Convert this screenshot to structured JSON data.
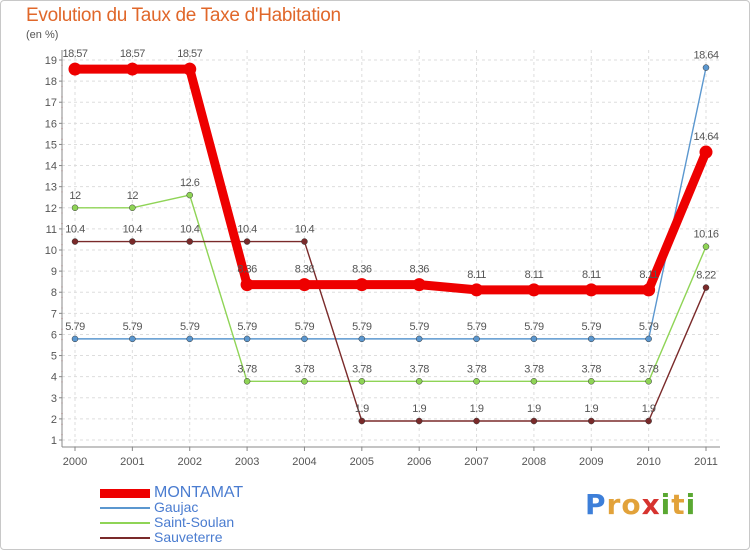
{
  "chart_data": {
    "type": "line",
    "title": "Evolution du Taux de Taxe d'Habitation",
    "ylabel": "(en %)",
    "xlabel": "",
    "categories": [
      "2000",
      "2001",
      "2002",
      "2003",
      "2004",
      "2005",
      "2006",
      "2007",
      "2008",
      "2009",
      "2010",
      "2011"
    ],
    "ylim": [
      1,
      19
    ],
    "yticks": [
      1,
      2,
      3,
      4,
      5,
      6,
      7,
      8,
      9,
      10,
      11,
      12,
      13,
      14,
      15,
      16,
      17,
      18,
      19
    ],
    "grid": true,
    "legend_position": "bottom-left",
    "series": [
      {
        "name": "Gaujac",
        "color": "#5b97cf",
        "emphasis": false,
        "values": [
          5.79,
          5.79,
          5.79,
          5.79,
          5.79,
          5.79,
          5.79,
          5.79,
          5.79,
          5.79,
          5.79,
          18.64
        ],
        "labels": [
          "5.79",
          "5.79",
          "5.79",
          "5.79",
          "5.79",
          "5.79",
          "5.79",
          "5.79",
          "5.79",
          "5.79",
          "5.79",
          "18.64"
        ]
      },
      {
        "name": "Saint-Soulan",
        "color": "#8fd456",
        "emphasis": false,
        "values": [
          12,
          12,
          12.6,
          3.78,
          3.78,
          3.78,
          3.78,
          3.78,
          3.78,
          3.78,
          3.78,
          10.16
        ],
        "labels": [
          "12",
          "12",
          "12.6",
          "3.78",
          "3.78",
          "3.78",
          "3.78",
          "3.78",
          "3.78",
          "3.78",
          "3.78",
          "10.16"
        ]
      },
      {
        "name": "Sauveterre",
        "color": "#7a2a2a",
        "emphasis": false,
        "values": [
          10.4,
          10.4,
          10.4,
          10.4,
          10.4,
          1.9,
          1.9,
          1.9,
          1.9,
          1.9,
          1.9,
          8.22
        ],
        "labels": [
          "10.4",
          "10.4",
          "10.4",
          "10.4",
          "10.4",
          "1.9",
          "1.9",
          "1.9",
          "1.9",
          "1.9",
          "1.9",
          "8.22"
        ]
      },
      {
        "name": "MONTAMAT",
        "color": "#ee0000",
        "emphasis": true,
        "values": [
          18.57,
          18.57,
          18.57,
          8.36,
          8.36,
          8.36,
          8.36,
          8.11,
          8.11,
          8.11,
          8.11,
          14.64
        ],
        "labels": [
          "18.57",
          "18.57",
          "18.57",
          "8.36",
          "8.36",
          "8.36",
          "8.36",
          "8.11",
          "8.11",
          "8.11",
          "8.11",
          "14.64"
        ]
      }
    ],
    "legend_order": [
      "MONTAMAT",
      "Gaujac",
      "Saint-Soulan",
      "Sauveterre"
    ]
  },
  "brand": {
    "letters": [
      "P",
      "r",
      "o",
      "x",
      "i",
      "t",
      "i"
    ],
    "colors": [
      "#3d7fd9",
      "#e2a23a",
      "#e2a23a",
      "#d6332f",
      "#5aa832",
      "#e2a23a",
      "#5aa832"
    ]
  }
}
